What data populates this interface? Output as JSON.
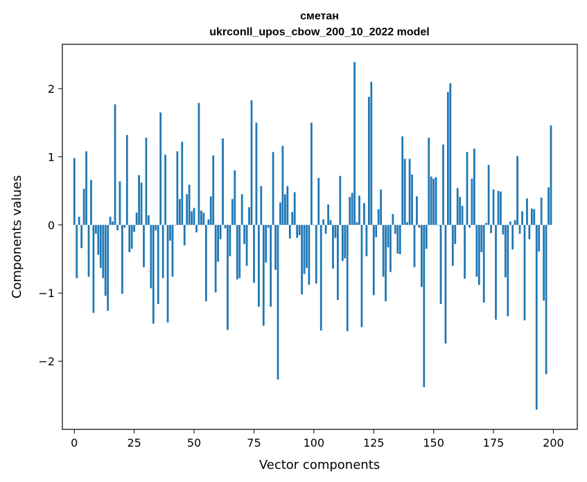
{
  "chart_data": {
    "type": "bar",
    "title": "сметан",
    "subtitle": "ukrconll_upos_cbow_200_10_2022 model",
    "xlabel": "Vector components",
    "ylabel": "Components values",
    "xlim": [
      -5,
      210
    ],
    "ylim": [
      -3.0,
      2.65
    ],
    "xticks": [
      0,
      25,
      50,
      75,
      100,
      125,
      150,
      175,
      200
    ],
    "yticks": [
      -2,
      -1,
      0,
      1,
      2
    ],
    "ytick_labels": [
      "−2",
      "−1",
      "0",
      "1",
      "2"
    ],
    "grid": false,
    "bar_color": "#1f77b4",
    "values": [
      0.98,
      -0.78,
      0.12,
      -0.34,
      0.53,
      1.08,
      -0.76,
      0.66,
      -1.29,
      -0.13,
      -0.44,
      -0.63,
      -0.78,
      -1.04,
      -1.26,
      0.12,
      0.05,
      1.77,
      -0.08,
      0.64,
      -1.01,
      -0.04,
      1.32,
      -0.4,
      -0.35,
      -0.1,
      0.18,
      0.73,
      0.62,
      -0.62,
      1.28,
      0.14,
      -0.93,
      -1.45,
      -0.08,
      -1.16,
      1.65,
      -0.78,
      1.03,
      -1.43,
      -0.23,
      -0.76,
      0.0,
      1.08,
      0.38,
      1.22,
      -0.3,
      0.45,
      0.59,
      0.2,
      0.25,
      -0.11,
      1.79,
      0.21,
      0.18,
      -1.12,
      0.08,
      0.42,
      1.02,
      -0.99,
      -0.54,
      -0.21,
      1.27,
      -0.05,
      -1.54,
      -0.46,
      0.38,
      0.8,
      -0.8,
      -0.78,
      0.45,
      -0.28,
      -0.6,
      0.26,
      1.83,
      -0.85,
      1.5,
      -1.2,
      0.57,
      -1.48,
      -0.55,
      -0.04,
      -1.2,
      1.07,
      -0.66,
      -2.27,
      0.33,
      1.16,
      0.45,
      0.57,
      -0.2,
      0.19,
      0.48,
      -0.19,
      -0.15,
      -1.02,
      -0.72,
      -0.63,
      -0.88,
      1.5,
      0.0,
      -0.86,
      0.69,
      -1.55,
      0.08,
      -0.13,
      0.3,
      0.07,
      -0.64,
      -0.19,
      -1.1,
      0.72,
      -0.53,
      -0.49,
      -1.56,
      0.41,
      0.47,
      2.39,
      0.04,
      0.43,
      -1.5,
      0.32,
      -0.46,
      1.88,
      2.1,
      -1.03,
      -0.18,
      0.23,
      0.52,
      -0.76,
      -1.12,
      -0.33,
      -0.69,
      0.16,
      -0.13,
      -0.42,
      -0.43,
      1.3,
      0.97,
      0.04,
      0.97,
      0.74,
      -0.62,
      0.42,
      -0.04,
      -0.91,
      -2.38,
      -0.35,
      1.28,
      0.71,
      0.68,
      0.7,
      0.0,
      -1.16,
      1.18,
      -1.74,
      1.95,
      2.08,
      -0.6,
      -0.28,
      0.54,
      0.41,
      0.28,
      -0.79,
      1.07,
      -0.04,
      0.68,
      1.12,
      -0.76,
      -0.88,
      -0.4,
      -1.14,
      0.03,
      0.88,
      -0.12,
      0.52,
      -1.39,
      0.5,
      0.49,
      -0.14,
      -0.77,
      -1.34,
      0.05,
      -0.36,
      0.07,
      1.01,
      -0.13,
      0.2,
      -1.4,
      0.39,
      -0.21,
      0.24,
      0.23,
      -2.71,
      -0.39,
      0.4,
      -1.11,
      -2.19,
      0.55,
      1.46
    ]
  }
}
